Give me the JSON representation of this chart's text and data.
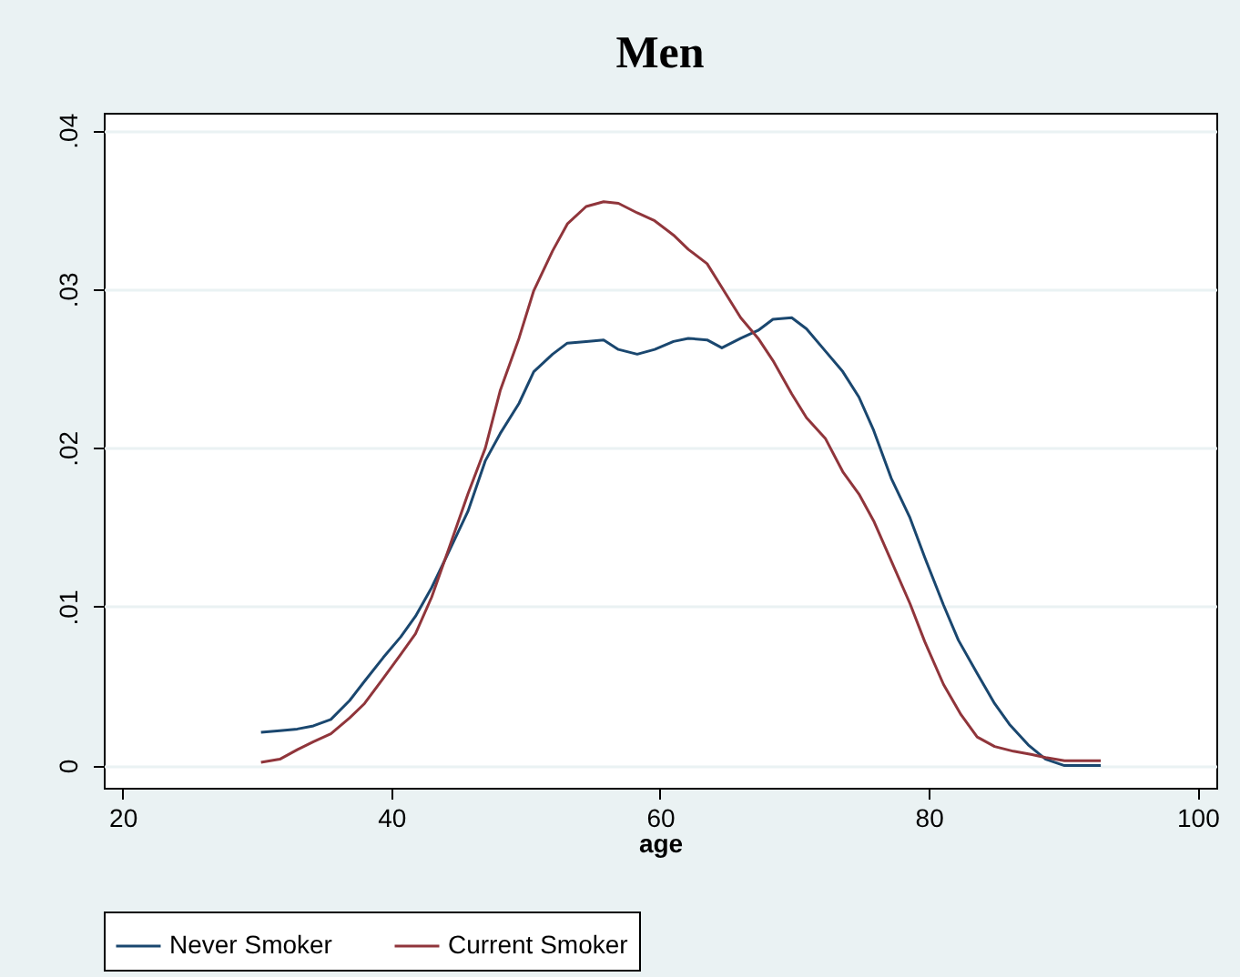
{
  "chart_data": {
    "type": "line",
    "title": "Men",
    "xlabel": "age",
    "xlim": [
      18.6,
      101.4
    ],
    "xticks": [
      20,
      40,
      60,
      80,
      100
    ],
    "ylim": [
      -0.0014,
      0.0411
    ],
    "yticks": [
      {
        "value": 0,
        "label": "0"
      },
      {
        "value": 0.01,
        "label": ".01"
      },
      {
        "value": 0.02,
        "label": ".02"
      },
      {
        "value": 0.03,
        "label": ".03"
      },
      {
        "value": 0.04,
        "label": ".04"
      }
    ],
    "grid": "y",
    "legend": "bottom",
    "line_style": "solid",
    "series": [
      {
        "name": "Never Smoker",
        "color": "#1a476f",
        "x": [
          30.3,
          31.7,
          33.0,
          34.2,
          35.5,
          36.9,
          38.0,
          39.4,
          40.7,
          41.8,
          43.0,
          44.3,
          45.7,
          47.0,
          48.1,
          49.5,
          50.6,
          52.0,
          53.1,
          54.5,
          55.8,
          56.9,
          58.3,
          59.6,
          61.0,
          62.1,
          63.5,
          64.6,
          66.0,
          67.3,
          68.4,
          69.8,
          70.9,
          72.3,
          73.6,
          74.8,
          75.9,
          77.2,
          78.6,
          79.7,
          81.1,
          82.2,
          83.6,
          84.9,
          86.0,
          87.4,
          88.7,
          90.1,
          91.5,
          92.8
        ],
        "values": [
          0.0021,
          0.0022,
          0.0023,
          0.0025,
          0.0029,
          0.0041,
          0.0053,
          0.0068,
          0.0081,
          0.0094,
          0.0112,
          0.0135,
          0.016,
          0.0192,
          0.0209,
          0.0228,
          0.0248,
          0.0259,
          0.0266,
          0.0267,
          0.0268,
          0.0262,
          0.0259,
          0.0262,
          0.0267,
          0.0269,
          0.0268,
          0.0263,
          0.0269,
          0.0274,
          0.0281,
          0.0282,
          0.0275,
          0.0261,
          0.0248,
          0.0232,
          0.0211,
          0.0181,
          0.0156,
          0.0131,
          0.0101,
          0.0079,
          0.0058,
          0.0039,
          0.0026,
          0.0013,
          0.0004,
          0.0,
          0.0,
          0.0
        ]
      },
      {
        "name": "Current Smoker",
        "color": "#90353b",
        "x": [
          30.3,
          31.7,
          33.0,
          34.2,
          35.5,
          36.9,
          38.0,
          39.4,
          40.7,
          41.8,
          43.0,
          44.3,
          45.7,
          47.0,
          48.1,
          49.5,
          50.6,
          52.0,
          53.1,
          54.5,
          55.8,
          56.9,
          58.3,
          59.6,
          61.0,
          62.1,
          63.5,
          64.6,
          66.0,
          67.3,
          68.4,
          69.8,
          70.9,
          72.3,
          73.6,
          74.8,
          75.9,
          77.2,
          78.6,
          79.7,
          81.1,
          82.4,
          83.6,
          84.9,
          86.3,
          87.6,
          88.7,
          90.1,
          91.5,
          92.8
        ],
        "values": [
          0.0002,
          0.0004,
          0.001,
          0.0015,
          0.002,
          0.003,
          0.0039,
          0.0055,
          0.007,
          0.0083,
          0.0106,
          0.0137,
          0.0171,
          0.02,
          0.0236,
          0.0269,
          0.0299,
          0.0324,
          0.0341,
          0.0352,
          0.0355,
          0.0354,
          0.0348,
          0.0343,
          0.0334,
          0.0325,
          0.0316,
          0.0301,
          0.0282,
          0.0269,
          0.0255,
          0.0234,
          0.0219,
          0.0206,
          0.0185,
          0.0171,
          0.0154,
          0.0129,
          0.0102,
          0.0078,
          0.0051,
          0.0032,
          0.0018,
          0.0012,
          0.0009,
          0.0007,
          0.0005,
          0.0003,
          0.0003,
          0.0003
        ]
      }
    ]
  }
}
